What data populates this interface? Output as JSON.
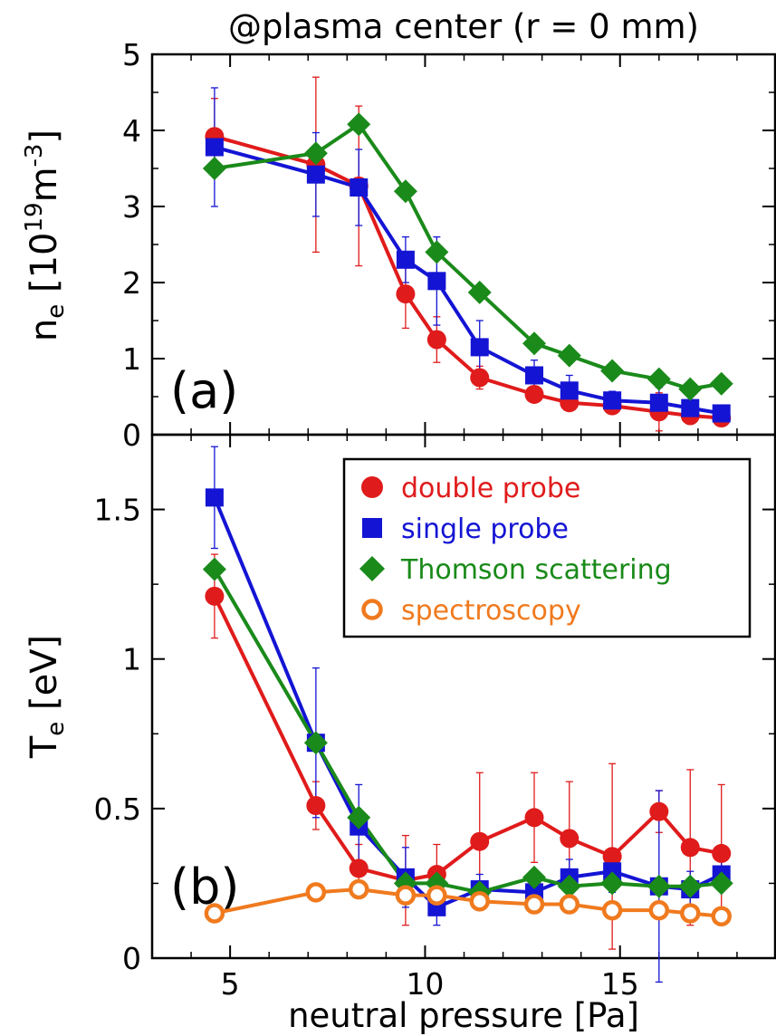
{
  "title": "@plasma center (r = 0 mm)",
  "xlabel": "neutral pressure [Pa]",
  "colors": {
    "double_probe": "#e01b1b",
    "single_probe": "#1414d4",
    "thomson": "#1a8a1a",
    "spectroscopy": "#f07a1e"
  },
  "chart_data": [
    {
      "type": "line",
      "panel_label": "(a)",
      "ylabel": {
        "base": "n",
        "sub": "e",
        "unit_open": " [10",
        "sup1": "19",
        "mid": "m",
        "sup2": "-3",
        "close": "]"
      },
      "xlim": [
        3,
        19
      ],
      "ylim": [
        0,
        5
      ],
      "xticks": [
        "5",
        "10",
        "15"
      ],
      "yticks": [
        "0",
        "1",
        "2",
        "3",
        "4",
        "5"
      ],
      "series": [
        {
          "name": "double probe",
          "key": "double_probe",
          "marker": "circle-filled",
          "x": [
            4.6,
            7.2,
            8.3,
            9.5,
            10.3,
            11.4,
            12.8,
            13.7,
            14.8,
            16.0,
            16.8,
            17.6
          ],
          "y": [
            3.92,
            3.55,
            3.27,
            1.85,
            1.25,
            0.75,
            0.53,
            0.42,
            0.38,
            0.3,
            0.25,
            0.22
          ],
          "err": [
            0.5,
            1.15,
            1.05,
            0.45,
            0.3,
            0.15,
            0.1,
            0.07,
            0.07,
            0.25,
            0.06,
            0.05
          ]
        },
        {
          "name": "single probe",
          "key": "single_probe",
          "marker": "square",
          "x": [
            4.6,
            7.2,
            8.3,
            9.5,
            10.3,
            11.4,
            12.8,
            13.7,
            14.8,
            16.0,
            16.8,
            17.6
          ],
          "y": [
            3.78,
            3.42,
            3.25,
            2.3,
            2.02,
            1.15,
            0.78,
            0.58,
            0.45,
            0.42,
            0.35,
            0.28
          ],
          "err": [
            0.78,
            0.55,
            0.5,
            0.3,
            0.58,
            0.35,
            0.2,
            0.2,
            0.12,
            0.2,
            0.1,
            0.06
          ]
        },
        {
          "name": "Thomson scattering",
          "key": "thomson",
          "marker": "diamond",
          "x": [
            4.6,
            7.2,
            8.3,
            9.5,
            10.3,
            11.4,
            12.8,
            13.7,
            14.8,
            16.0,
            16.8,
            17.6
          ],
          "y": [
            3.5,
            3.7,
            4.08,
            3.2,
            2.4,
            1.87,
            1.2,
            1.04,
            0.84,
            0.73,
            0.6,
            0.67
          ],
          "err": []
        }
      ]
    },
    {
      "type": "line",
      "panel_label": "(b)",
      "ylabel": {
        "base": "T",
        "sub": "e",
        "unit": " [eV]"
      },
      "xlim": [
        3,
        19
      ],
      "ylim": [
        0,
        1.75
      ],
      "xticks": [
        "5",
        "10",
        "15"
      ],
      "yticks": [
        "0",
        "0.5",
        "1",
        "1.5"
      ],
      "legend_position": "top-right",
      "series": [
        {
          "name": "double probe",
          "key": "double_probe",
          "marker": "circle-filled",
          "x": [
            4.6,
            7.2,
            8.3,
            9.5,
            10.3,
            11.4,
            12.8,
            13.7,
            14.8,
            16.0,
            16.8,
            17.6
          ],
          "y": [
            1.21,
            0.51,
            0.3,
            0.26,
            0.28,
            0.39,
            0.47,
            0.4,
            0.34,
            0.49,
            0.37,
            0.35
          ],
          "err": [
            0.14,
            0.08,
            0.08,
            0.15,
            0.1,
            0.23,
            0.15,
            0.19,
            0.31,
            0.07,
            0.26,
            0.23
          ]
        },
        {
          "name": "single probe",
          "key": "single_probe",
          "marker": "square",
          "x": [
            4.6,
            7.2,
            8.3,
            9.5,
            10.3,
            11.4,
            12.8,
            13.7,
            14.8,
            16.0,
            16.8,
            17.6
          ],
          "y": [
            1.54,
            0.72,
            0.44,
            0.27,
            0.17,
            0.23,
            0.22,
            0.27,
            0.29,
            0.24,
            0.23,
            0.28
          ],
          "err": [
            0.17,
            0.25,
            0.14,
            0.1,
            0.06,
            0.05,
            0.05,
            0.06,
            0.07,
            0.32,
            0.06,
            0.05
          ]
        },
        {
          "name": "Thomson scattering",
          "key": "thomson",
          "marker": "diamond",
          "x": [
            4.6,
            7.2,
            8.3,
            9.5,
            10.3,
            11.4,
            12.8,
            13.7,
            14.8,
            16.0,
            16.8,
            17.6
          ],
          "y": [
            1.3,
            0.72,
            0.47,
            0.25,
            0.25,
            0.22,
            0.27,
            0.24,
            0.25,
            0.24,
            0.24,
            0.25
          ],
          "err": []
        },
        {
          "name": "spectroscopy",
          "key": "spectroscopy",
          "marker": "circle-open",
          "x": [
            4.6,
            7.2,
            8.3,
            9.5,
            10.3,
            11.4,
            12.8,
            13.7,
            14.8,
            16.0,
            16.8,
            17.6
          ],
          "y": [
            0.15,
            0.22,
            0.23,
            0.21,
            0.21,
            0.19,
            0.18,
            0.18,
            0.16,
            0.16,
            0.15,
            0.14
          ],
          "err": []
        }
      ]
    }
  ]
}
